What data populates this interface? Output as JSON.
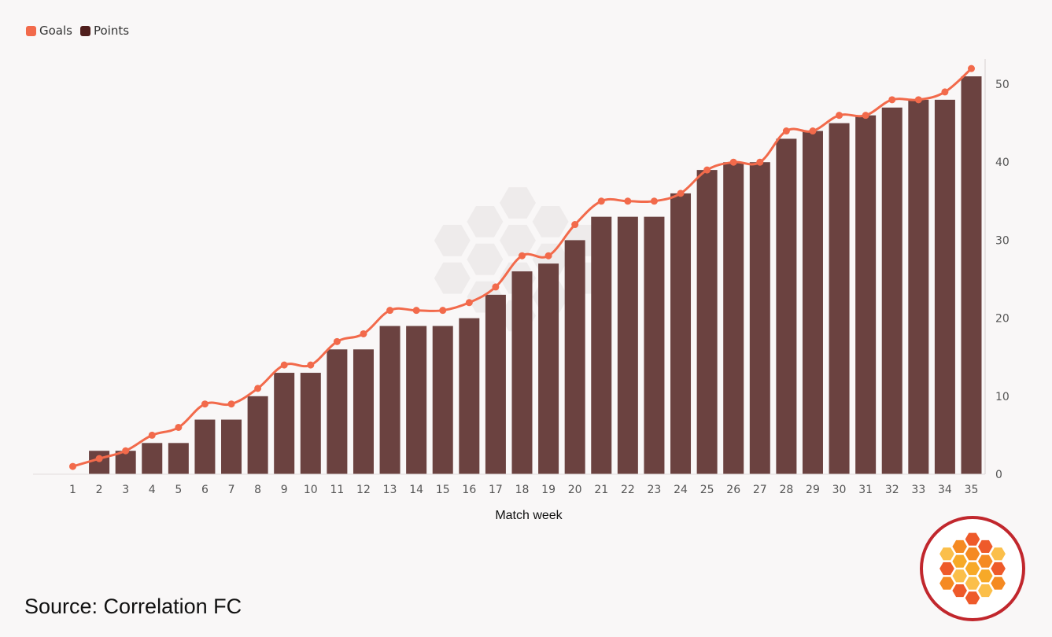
{
  "colors": {
    "goals": "#f26a4b",
    "points": "#6b4240",
    "points_legend": "#4f1e1c",
    "background": "#f9f7f7",
    "axis_text": "#555555",
    "logo_ring": "#c1272d"
  },
  "footer": {
    "source": "Source: Correlation FC"
  },
  "chart_data": {
    "type": "bar",
    "xlabel": "Match week",
    "ylabel": "",
    "ylim": [
      0,
      52
    ],
    "y_ticks": [
      0,
      10,
      20,
      30,
      40,
      50
    ],
    "y_axis_side": "right",
    "grid": false,
    "legend_position": "top-left",
    "categories": [
      "1",
      "2",
      "3",
      "4",
      "5",
      "6",
      "7",
      "8",
      "9",
      "10",
      "11",
      "12",
      "13",
      "14",
      "15",
      "16",
      "17",
      "18",
      "19",
      "20",
      "21",
      "22",
      "23",
      "24",
      "25",
      "26",
      "27",
      "28",
      "29",
      "30",
      "31",
      "32",
      "33",
      "34",
      "35"
    ],
    "series": [
      {
        "name": "Goals",
        "type": "line",
        "values": [
          1,
          2,
          3,
          5,
          6,
          9,
          9,
          11,
          14,
          14,
          17,
          18,
          21,
          21,
          21,
          22,
          24,
          28,
          28,
          32,
          35,
          35,
          35,
          36,
          39,
          40,
          40,
          44,
          44,
          46,
          46,
          48,
          48,
          49,
          52
        ]
      },
      {
        "name": "Points",
        "type": "bar",
        "values": [
          0,
          3,
          3,
          4,
          4,
          7,
          7,
          10,
          13,
          13,
          16,
          16,
          19,
          19,
          19,
          20,
          23,
          26,
          27,
          30,
          33,
          33,
          33,
          36,
          39,
          40,
          40,
          43,
          44,
          45,
          46,
          47,
          48,
          48,
          51
        ]
      }
    ]
  }
}
